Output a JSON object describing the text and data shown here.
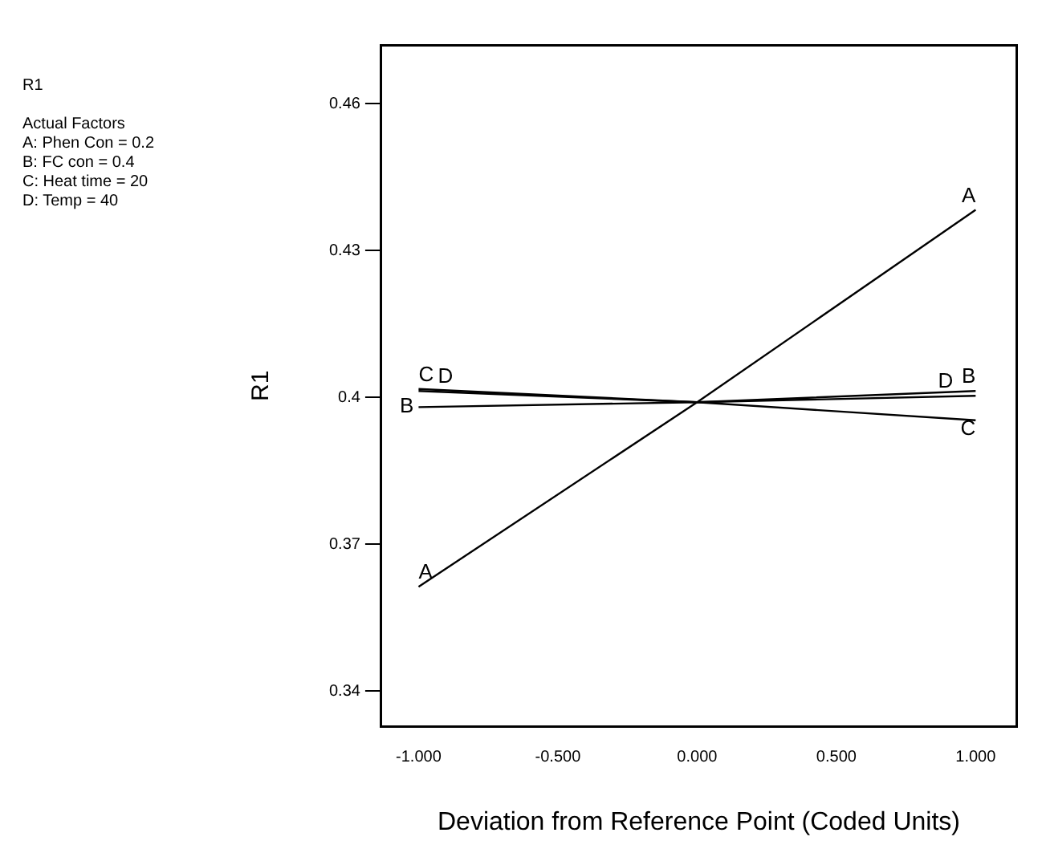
{
  "chart_data": {
    "type": "line",
    "xlabel": "Deviation from Reference Point (Coded Units)",
    "ylabel": "R1",
    "annotations": [
      "R1",
      "Actual Factors",
      "A: Phen Con = 0.2",
      "B: FC con = 0.4",
      "C: Heat time = 20",
      "D: Temp = 40"
    ],
    "x": [
      -1,
      0,
      1
    ],
    "series": [
      {
        "name": "A",
        "color": "#000000",
        "values": [
          0.3613,
          0.399,
          0.4383
        ]
      },
      {
        "name": "B",
        "color": "#000000",
        "values": [
          0.398,
          0.399,
          0.4013
        ]
      },
      {
        "name": "C",
        "color": "#000000",
        "values": [
          0.4017,
          0.399,
          0.3953
        ]
      },
      {
        "name": "D",
        "color": "#000000",
        "values": [
          0.4013,
          0.399,
          0.4003
        ]
      }
    ],
    "xlim": [
      -1.134,
      1.146
    ],
    "xticks": [
      {
        "value": -1,
        "label": "-1.000"
      },
      {
        "value": -0.5,
        "label": "-0.500"
      },
      {
        "value": 0,
        "label": "0.000"
      },
      {
        "value": 0.5,
        "label": "0.500"
      },
      {
        "value": 1,
        "label": "1.000"
      }
    ],
    "ylim": [
      0.3327,
      0.472
    ],
    "yticks": [
      0.34,
      0.37,
      0.4,
      0.43,
      0.46
    ],
    "grid": false,
    "legend": false,
    "marker": "none",
    "line_style": "solid"
  }
}
